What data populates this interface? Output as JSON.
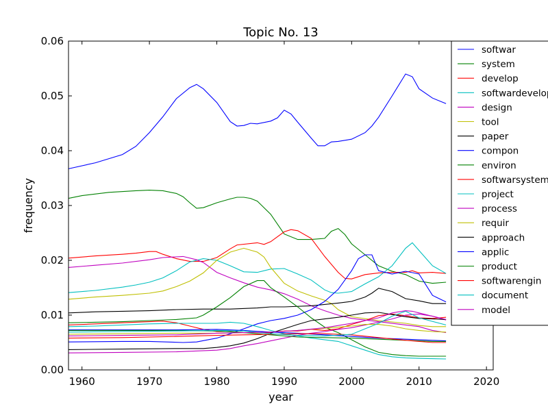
{
  "chart_data": {
    "type": "line",
    "title": "Topic No. 13",
    "xlabel": "year",
    "ylabel": "frequency",
    "xlim": [
      1958,
      2021
    ],
    "ylim": [
      0.0,
      0.06
    ],
    "xticks": [
      1960,
      1970,
      1980,
      1990,
      2000,
      2010,
      2020
    ],
    "yticks": [
      0.0,
      0.01,
      0.02,
      0.03,
      0.04,
      0.05,
      0.06
    ],
    "xtick_labels": [
      "1960",
      "1970",
      "1980",
      "1990",
      "2000",
      "2010",
      "2020"
    ],
    "ytick_labels": [
      "0.00",
      "0.01",
      "0.02",
      "0.03",
      "0.04",
      "0.05",
      "0.06"
    ],
    "grid": false,
    "legend_position": "right",
    "series": [
      {
        "name": "softwar",
        "color": "#0000ff",
        "x": [
          1958,
          1962,
          1966,
          1968,
          1970,
          1972,
          1974,
          1976,
          1977,
          1978,
          1980,
          1982,
          1983,
          1984,
          1985,
          1986,
          1988,
          1989,
          1990,
          1991,
          1992,
          1994,
          1995,
          1996,
          1997,
          1998,
          2000,
          2002,
          2003,
          2004,
          2006,
          2008,
          2009,
          2010,
          2012,
          2014
        ],
        "y": [
          0.0367,
          0.0378,
          0.0393,
          0.0408,
          0.0433,
          0.0462,
          0.0495,
          0.0515,
          0.0521,
          0.0513,
          0.0488,
          0.0453,
          0.0445,
          0.0446,
          0.045,
          0.0449,
          0.0454,
          0.046,
          0.0474,
          0.0467,
          0.0452,
          0.0423,
          0.0409,
          0.0409,
          0.0416,
          0.0417,
          0.0421,
          0.0433,
          0.0445,
          0.0461,
          0.05,
          0.054,
          0.0535,
          0.0513,
          0.0496,
          0.0486
        ]
      },
      {
        "name": "system",
        "color": "#008000",
        "x": [
          1958,
          1960,
          1964,
          1968,
          1970,
          1972,
          1974,
          1975,
          1976,
          1977,
          1978,
          1980,
          1982,
          1983,
          1984,
          1985,
          1986,
          1988,
          1990,
          1992,
          1994,
          1996,
          1997,
          1998,
          1999,
          2000,
          2002,
          2004,
          2006,
          2008,
          2010,
          2012,
          2014
        ],
        "y": [
          0.0313,
          0.0318,
          0.0324,
          0.0327,
          0.0328,
          0.0327,
          0.0322,
          0.0316,
          0.0305,
          0.0295,
          0.0296,
          0.0305,
          0.0312,
          0.0315,
          0.0315,
          0.0313,
          0.0308,
          0.0284,
          0.0248,
          0.0238,
          0.0238,
          0.024,
          0.0253,
          0.0258,
          0.0247,
          0.023,
          0.021,
          0.019,
          0.018,
          0.0174,
          0.0162,
          0.0158,
          0.016
        ]
      },
      {
        "name": "develop",
        "color": "#ff0000",
        "x": [
          1958,
          1962,
          1966,
          1968,
          1970,
          1971,
          1972,
          1974,
          1976,
          1978,
          1980,
          1982,
          1983,
          1986,
          1987,
          1988,
          1990,
          1991,
          1992,
          1994,
          1996,
          1998,
          1999,
          2000,
          2002,
          2004,
          2006,
          2008,
          2009,
          2010,
          2012,
          2014
        ],
        "y": [
          0.0204,
          0.0208,
          0.0211,
          0.0213,
          0.0216,
          0.0216,
          0.0211,
          0.0203,
          0.0198,
          0.0198,
          0.0205,
          0.0221,
          0.0228,
          0.0232,
          0.0229,
          0.0234,
          0.0252,
          0.0256,
          0.0254,
          0.024,
          0.0207,
          0.0178,
          0.0167,
          0.0166,
          0.0174,
          0.0177,
          0.0178,
          0.0178,
          0.0181,
          0.0177,
          0.0178,
          0.0176
        ]
      },
      {
        "name": "softwardevelop",
        "color": "#00bfbf",
        "x": [
          1958,
          1962,
          1966,
          1968,
          1970,
          1972,
          1974,
          1976,
          1978,
          1980,
          1982,
          1984,
          1986,
          1988,
          1990,
          1992,
          1994,
          1996,
          1997,
          1998,
          2000,
          2002,
          2004,
          2006,
          2008,
          2009,
          2010,
          2012,
          2014
        ],
        "y": [
          0.0141,
          0.0145,
          0.0151,
          0.0155,
          0.016,
          0.0168,
          0.0181,
          0.0197,
          0.0203,
          0.02,
          0.019,
          0.0179,
          0.0178,
          0.0184,
          0.0185,
          0.0175,
          0.0164,
          0.0146,
          0.0141,
          0.014,
          0.0143,
          0.0157,
          0.017,
          0.019,
          0.0222,
          0.0232,
          0.0218,
          0.019,
          0.0176
        ]
      },
      {
        "name": "design",
        "color": "#bf00bf",
        "x": [
          1958,
          1962,
          1966,
          1970,
          1972,
          1975,
          1977,
          1978,
          1980,
          1982,
          1984,
          1986,
          1988,
          1990,
          1992,
          1994,
          1996,
          1998,
          2000,
          2004,
          2008,
          2010,
          2012,
          2014
        ],
        "y": [
          0.0187,
          0.0191,
          0.0195,
          0.0201,
          0.0205,
          0.0207,
          0.0201,
          0.0196,
          0.0178,
          0.0168,
          0.0159,
          0.0151,
          0.0146,
          0.0139,
          0.0129,
          0.0117,
          0.0108,
          0.01,
          0.0094,
          0.0088,
          0.0082,
          0.0079,
          0.0072,
          0.0068
        ]
      },
      {
        "name": "tool",
        "color": "#bfbf00",
        "x": [
          1958,
          1962,
          1966,
          1970,
          1972,
          1974,
          1976,
          1978,
          1980,
          1982,
          1984,
          1986,
          1987,
          1988,
          1990,
          1992,
          1994,
          1996,
          1997,
          1998,
          2000,
          2004,
          2008,
          2010,
          2012,
          2014
        ],
        "y": [
          0.0129,
          0.0133,
          0.0136,
          0.014,
          0.0144,
          0.0152,
          0.0162,
          0.0177,
          0.02,
          0.0215,
          0.0222,
          0.0215,
          0.0206,
          0.0187,
          0.0158,
          0.0144,
          0.0135,
          0.0127,
          0.0121,
          0.011,
          0.0097,
          0.009,
          0.0085,
          0.0081,
          0.0079,
          0.0079
        ]
      },
      {
        "name": "paper",
        "color": "#000000",
        "x": [
          1958,
          1962,
          1966,
          1970,
          1974,
          1978,
          1982,
          1986,
          1988,
          1990,
          1994,
          1998,
          2000,
          2002,
          2003,
          2004,
          2006,
          2008,
          2010,
          2012,
          2014
        ],
        "y": [
          0.0104,
          0.0106,
          0.0107,
          0.0108,
          0.011,
          0.0111,
          0.0111,
          0.0113,
          0.0115,
          0.0115,
          0.0117,
          0.0122,
          0.0125,
          0.0133,
          0.014,
          0.0149,
          0.0143,
          0.013,
          0.0126,
          0.0121,
          0.0121
        ]
      },
      {
        "name": "compon",
        "color": "#0000ff",
        "x": [
          1958,
          1966,
          1970,
          1975,
          1977,
          1980,
          1982,
          1984,
          1986,
          1988,
          1990,
          1992,
          1994,
          1996,
          1998,
          2000,
          2001,
          2002,
          2003,
          2004,
          2006,
          2008,
          2010,
          2012,
          2014
        ],
        "y": [
          0.0051,
          0.0052,
          0.0052,
          0.005,
          0.0051,
          0.0058,
          0.0066,
          0.0075,
          0.0084,
          0.009,
          0.0094,
          0.01,
          0.011,
          0.0125,
          0.0147,
          0.0181,
          0.0203,
          0.021,
          0.021,
          0.0181,
          0.0175,
          0.018,
          0.0175,
          0.0136,
          0.0124
        ]
      },
      {
        "name": "environ",
        "color": "#008000",
        "x": [
          1958,
          1966,
          1970,
          1974,
          1977,
          1978,
          1980,
          1982,
          1984,
          1986,
          1987,
          1988,
          1990,
          1992,
          1994,
          1996,
          1998,
          2000,
          2002,
          2004,
          2006,
          2008,
          2010,
          2014
        ],
        "y": [
          0.0086,
          0.0088,
          0.009,
          0.0092,
          0.0095,
          0.01,
          0.0115,
          0.0132,
          0.0152,
          0.0163,
          0.0163,
          0.015,
          0.0133,
          0.0115,
          0.0095,
          0.0078,
          0.0068,
          0.0055,
          0.0042,
          0.0032,
          0.0028,
          0.0026,
          0.0025,
          0.0025
        ]
      },
      {
        "name": "softwarsystem",
        "color": "#ff0000",
        "x": [
          1958,
          1962,
          1966,
          1970,
          1972,
          1974,
          1976,
          1978,
          1980,
          1982,
          1984,
          1986,
          1988,
          1990,
          1992,
          1994,
          1996,
          1998,
          2000,
          2002,
          2004,
          2006,
          2008,
          2010,
          2012,
          2014
        ],
        "y": [
          0.0082,
          0.0084,
          0.0086,
          0.0088,
          0.0089,
          0.0086,
          0.008,
          0.0074,
          0.007,
          0.007,
          0.0068,
          0.0068,
          0.0068,
          0.0071,
          0.0071,
          0.0074,
          0.0072,
          0.0075,
          0.0083,
          0.009,
          0.0099,
          0.0102,
          0.0099,
          0.0095,
          0.0094,
          0.0096
        ]
      },
      {
        "name": "project",
        "color": "#00bfbf",
        "x": [
          1958,
          1962,
          1966,
          1970,
          1974,
          1978,
          1980,
          1982,
          1984,
          1986,
          1988,
          1990,
          1994,
          1998,
          2000,
          2002,
          2004,
          2006,
          2008,
          2010,
          2014
        ],
        "y": [
          0.0079,
          0.008,
          0.0082,
          0.0084,
          0.0085,
          0.0085,
          0.0085,
          0.0087,
          0.0085,
          0.0079,
          0.0072,
          0.0066,
          0.0058,
          0.0052,
          0.0044,
          0.0036,
          0.0028,
          0.0024,
          0.0022,
          0.0021,
          0.002
        ]
      },
      {
        "name": "process",
        "color": "#bf00bf",
        "x": [
          1958,
          1966,
          1974,
          1980,
          1982,
          1984,
          1986,
          1988,
          1990,
          1992,
          1994,
          1996,
          1998,
          2000,
          2002,
          2004,
          2006,
          2008,
          2010,
          2012,
          2014
        ],
        "y": [
          0.0031,
          0.0032,
          0.0033,
          0.0036,
          0.0039,
          0.0044,
          0.0048,
          0.0053,
          0.0058,
          0.0063,
          0.0067,
          0.007,
          0.0074,
          0.0077,
          0.0082,
          0.0087,
          0.0093,
          0.01,
          0.0102,
          0.0098,
          0.0091
        ]
      },
      {
        "name": "requir",
        "color": "#bfbf00",
        "x": [
          1958,
          1966,
          1974,
          1980,
          1984,
          1988,
          1992,
          1996,
          2000,
          2002,
          2004,
          2006,
          2008,
          2010,
          2012,
          2014
        ],
        "y": [
          0.0065,
          0.0066,
          0.0067,
          0.0067,
          0.0068,
          0.0069,
          0.0072,
          0.0076,
          0.008,
          0.0083,
          0.0083,
          0.008,
          0.0075,
          0.0072,
          0.007,
          0.0069
        ]
      },
      {
        "name": "approach",
        "color": "#000000",
        "x": [
          1958,
          1966,
          1974,
          1978,
          1980,
          1982,
          1984,
          1986,
          1988,
          1990,
          1992,
          1994,
          1996,
          1998,
          2000,
          2002,
          2004,
          2006,
          2008,
          2010,
          2012,
          2014
        ],
        "y": [
          0.0037,
          0.0038,
          0.0039,
          0.0039,
          0.0041,
          0.0044,
          0.0049,
          0.0057,
          0.0067,
          0.0075,
          0.0083,
          0.009,
          0.0093,
          0.0096,
          0.01,
          0.0104,
          0.0105,
          0.0101,
          0.0097,
          0.0094,
          0.0093,
          0.0092
        ]
      },
      {
        "name": "applic",
        "color": "#0000ff",
        "x": [
          1958,
          1966,
          1974,
          1980,
          1984,
          1988,
          1992,
          1996,
          2000,
          2004,
          2008,
          2012,
          2014
        ],
        "y": [
          0.0073,
          0.0073,
          0.0073,
          0.0074,
          0.0072,
          0.0069,
          0.0067,
          0.0064,
          0.0061,
          0.0058,
          0.0056,
          0.0054,
          0.0053
        ]
      },
      {
        "name": "product",
        "color": "#008000",
        "x": [
          1958,
          1966,
          1974,
          1980,
          1984,
          1988,
          1992,
          1996,
          2000,
          2004,
          2008,
          2012,
          2014
        ],
        "y": [
          0.0072,
          0.0072,
          0.0072,
          0.0071,
          0.0068,
          0.0064,
          0.006,
          0.0059,
          0.0058,
          0.0056,
          0.0054,
          0.0052,
          0.0052
        ]
      },
      {
        "name": "softwarengin",
        "color": "#ff0000",
        "x": [
          1958,
          1966,
          1974,
          1980,
          1984,
          1988,
          1992,
          1996,
          2000,
          2004,
          2008,
          2012,
          2014
        ],
        "y": [
          0.0058,
          0.0059,
          0.0061,
          0.0063,
          0.0064,
          0.0065,
          0.0066,
          0.0066,
          0.0064,
          0.0059,
          0.0054,
          0.005,
          0.005
        ]
      },
      {
        "name": "document",
        "color": "#00bfbf",
        "x": [
          1958,
          1966,
          1974,
          1980,
          1984,
          1988,
          1992,
          1996,
          2000,
          2004,
          2006,
          2008,
          2010,
          2014
        ],
        "y": [
          0.0069,
          0.007,
          0.0071,
          0.0072,
          0.0071,
          0.0066,
          0.0063,
          0.0062,
          0.0065,
          0.0085,
          0.0098,
          0.0107,
          0.0095,
          0.0082
        ]
      },
      {
        "name": "model",
        "color": "#bf00bf",
        "x": [
          1958,
          1966,
          1974,
          1980,
          1984,
          1988,
          1992,
          1996,
          2000,
          2004,
          2006,
          2008,
          2009,
          2010,
          2012,
          2014
        ],
        "y": [
          0.0062,
          0.0063,
          0.0064,
          0.0067,
          0.0068,
          0.0069,
          0.0072,
          0.0077,
          0.0085,
          0.0095,
          0.0104,
          0.0108,
          0.0107,
          0.0104,
          0.0098,
          0.0092
        ]
      }
    ]
  }
}
